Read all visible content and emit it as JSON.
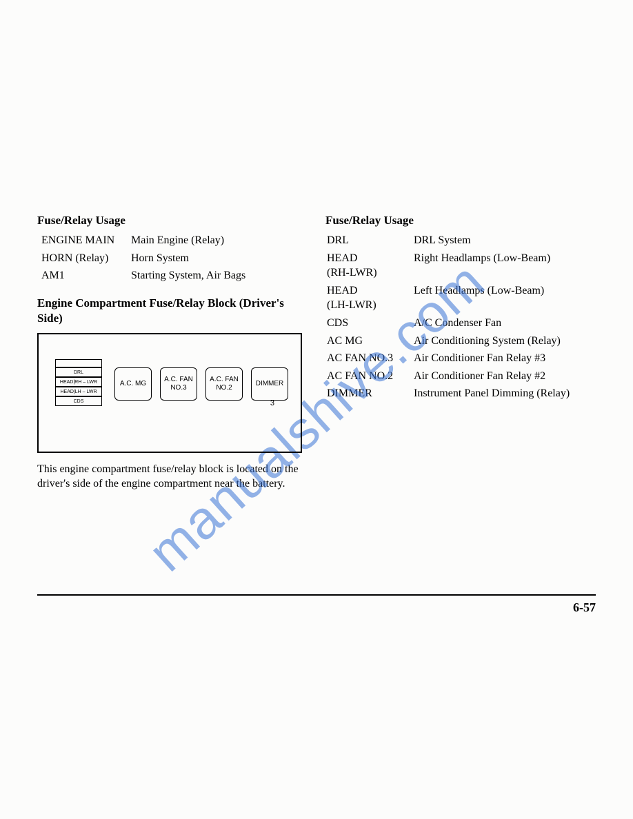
{
  "watermark": "manualshive.com",
  "page_number": "6-57",
  "left": {
    "heading": "Fuse/Relay Usage",
    "rows": [
      {
        "name": "ENGINE MAIN",
        "desc": "Main Engine (Relay)"
      },
      {
        "name": "HORN (Relay)",
        "desc": "Horn System"
      },
      {
        "name": "AM1",
        "desc": "Starting System, Air Bags"
      }
    ],
    "subheading": "Engine Compartment Fuse/Relay Block (Driver's Side)",
    "diagram": {
      "small_fuses": [
        "",
        "DRL",
        "HEAD|RH – LWR",
        "HEAD|LH – LWR",
        "CDS"
      ],
      "relays": [
        "A.C.\nMG",
        "A.C.\nFAN NO.3",
        "A.C.\nFAN NO.2",
        "DIMMER"
      ],
      "corner_num": "3"
    },
    "body": "This engine compartment fuse/relay block is located on the driver's side of the engine compartment near the battery."
  },
  "right": {
    "heading": "Fuse/Relay Usage",
    "rows": [
      {
        "name": "DRL",
        "desc": "DRL System"
      },
      {
        "name": "HEAD\n(RH-LWR)",
        "desc": "Right Headlamps (Low-Beam)"
      },
      {
        "name": "HEAD\n(LH-LWR)",
        "desc": "Left Headlamps (Low-Beam)"
      },
      {
        "name": "CDS",
        "desc": "A/C Condenser Fan"
      },
      {
        "name": "AC MG",
        "desc": "Air Conditioning System (Relay)"
      },
      {
        "name": "AC FAN NO.3",
        "desc": "Air Conditioner Fan Relay #3"
      },
      {
        "name": "AC FAN NO.2",
        "desc": "Air Conditioner Fan Relay #2"
      },
      {
        "name": "DIMMER",
        "desc": "Instrument Panel Dimming (Relay)"
      }
    ]
  }
}
